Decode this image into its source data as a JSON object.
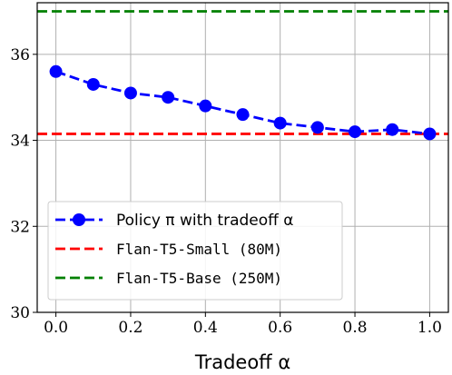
{
  "chart_data": {
    "type": "line",
    "x": [
      0.0,
      0.1,
      0.2,
      0.3,
      0.4,
      0.5,
      0.6,
      0.7,
      0.8,
      0.9,
      1.0
    ],
    "series": [
      {
        "name": "Policy π with tradeoff α",
        "values": [
          35.6,
          35.3,
          35.1,
          35.0,
          34.8,
          34.6,
          34.4,
          34.3,
          34.2,
          34.25,
          34.15
        ],
        "color": "#0000ff",
        "style": "dashed-with-markers"
      }
    ],
    "reference_lines": [
      {
        "name": "Flan-T5-Small (80M)",
        "y": 34.15,
        "color": "#ff0000",
        "style": "dashed"
      },
      {
        "name": "Flan-T5-Base (250M)",
        "y": 37.0,
        "color": "#008000",
        "style": "dashed"
      }
    ],
    "xlabel": "Tradeoff α",
    "ylabel": "",
    "xlim": [
      -0.05,
      1.05
    ],
    "ylim": [
      30,
      37.2
    ],
    "xticks": [
      "0.0",
      "0.2",
      "0.4",
      "0.6",
      "0.8",
      "1.0"
    ],
    "yticks": [
      "30",
      "32",
      "34",
      "36"
    ],
    "grid": true,
    "legend_position": "lower-left"
  }
}
